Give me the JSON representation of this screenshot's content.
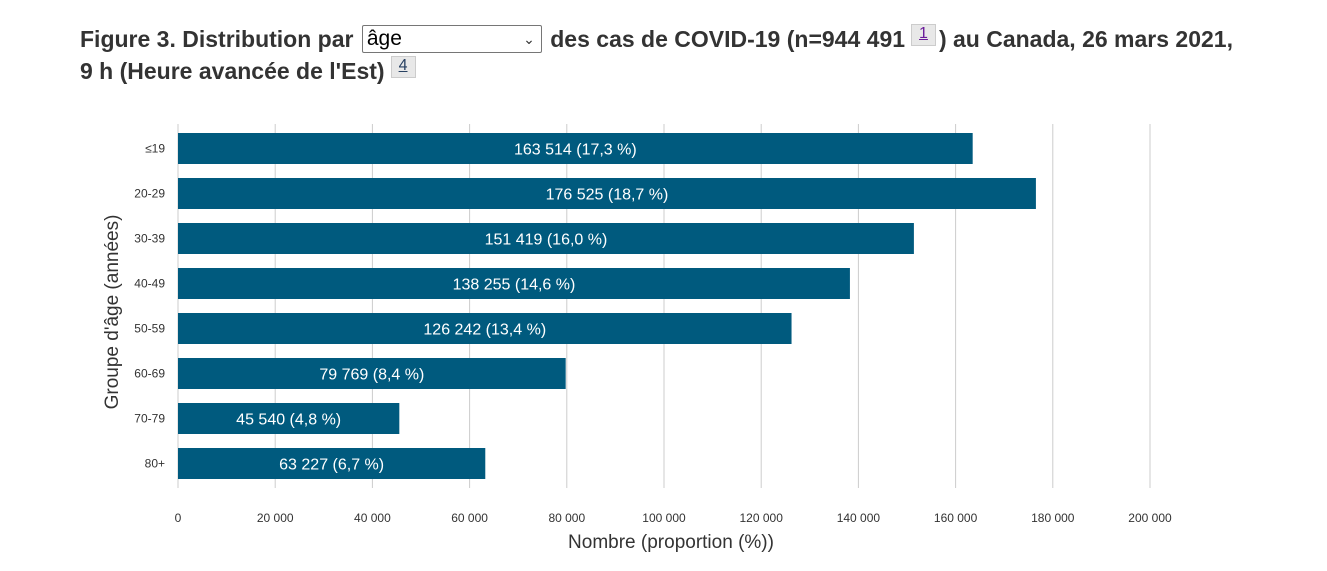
{
  "header": {
    "title_part1": "Figure 3. Distribution par",
    "dropdown_value": "âge",
    "title_part2": "des cas de COVID-19 (n=944 491",
    "footnote_1": "1",
    "title_part3": ") au Canada, 26 mars 2021,",
    "title_part4": "9 h (Heure avancée de l'Est)",
    "footnote_2": "4"
  },
  "chart_data": {
    "type": "bar",
    "orientation": "horizontal",
    "categories": [
      "≤19",
      "20-29",
      "30-39",
      "40-49",
      "50-59",
      "60-69",
      "70-79",
      "80+"
    ],
    "values": [
      163514,
      176525,
      151419,
      138255,
      126242,
      79769,
      45540,
      63227
    ],
    "data_labels": [
      "163 514 (17,3 %)",
      "176 525 (18,7 %)",
      "151 419 (16,0 %)",
      "138 255 (14,6 %)",
      "126 242 (13,4 %)",
      "79 769 (8,4 %)",
      "45 540 (4,8 %)",
      "63 227 (6,7 %)"
    ],
    "xlabel": "Nombre (proportion (%))",
    "ylabel": "Groupe d'âge (années)",
    "xlim": [
      0,
      200000
    ],
    "xticks": [
      0,
      20000,
      40000,
      60000,
      80000,
      100000,
      120000,
      140000,
      160000,
      180000,
      200000
    ],
    "xtick_labels": [
      "0",
      "20 000",
      "40 000",
      "60 000",
      "80 000",
      "100 000",
      "120 000",
      "140 000",
      "160 000",
      "180 000",
      "200 000"
    ],
    "grid": "vertical",
    "bar_color": "#005a7e",
    "grid_color": "#cccccc",
    "label_color": "#ffffff"
  }
}
